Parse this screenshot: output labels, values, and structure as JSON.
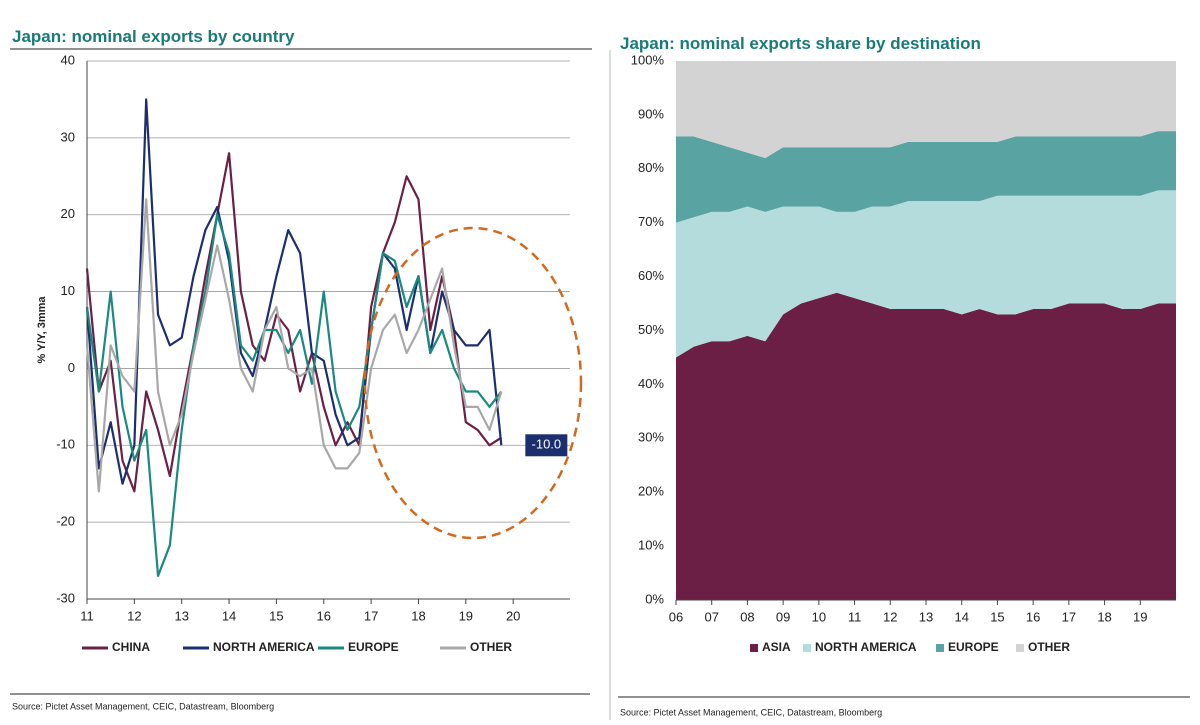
{
  "chart_data": [
    {
      "type": "line",
      "title": "Japan: nominal exports by country",
      "y_label": "% Y/Y, 3mma",
      "source": "Source: Pictet Asset Management, CEIC, Datastream, Bloomberg",
      "x": [
        11,
        11.25,
        11.5,
        11.75,
        12,
        12.25,
        12.5,
        12.75,
        13,
        13.25,
        13.5,
        13.75,
        14,
        14.25,
        14.5,
        14.75,
        15,
        15.25,
        15.5,
        15.75,
        16,
        16.25,
        16.5,
        16.75,
        17,
        17.25,
        17.5,
        17.75,
        18,
        18.25,
        18.5,
        18.75,
        19,
        19.25,
        19.5,
        19.75
      ],
      "series": [
        {
          "name": "CHINA",
          "color": "#6b1f45",
          "values": [
            13,
            -3,
            1,
            -12,
            -16,
            -3,
            -8,
            -14,
            -5,
            3,
            12,
            20,
            28,
            10,
            3,
            1,
            7,
            5,
            -3,
            2,
            -5,
            -10,
            -7,
            -10,
            8,
            15,
            19,
            25,
            22,
            5,
            12,
            5,
            -7,
            -8,
            -10,
            -9
          ]
        },
        {
          "name": "NORTH AMERICA",
          "color": "#1b2f6e",
          "values": [
            8,
            -13,
            -7,
            -15,
            -10,
            35,
            7,
            3,
            4,
            12,
            18,
            21,
            14,
            2,
            -1,
            5,
            12,
            18,
            15,
            2,
            1,
            -6,
            -10,
            -9,
            5,
            15,
            13,
            5,
            12,
            2,
            10,
            5,
            3,
            3,
            5,
            -10
          ]
        },
        {
          "name": "EUROPE",
          "color": "#1a8a80",
          "values": [
            8,
            -3,
            10,
            -5,
            -12,
            -8,
            -27,
            -23,
            -8,
            3,
            10,
            20,
            15,
            3,
            1,
            5,
            5,
            2,
            5,
            -2,
            10,
            -3,
            -8,
            -5,
            5,
            15,
            14,
            8,
            12,
            2,
            5,
            0,
            -3,
            -3,
            -5,
            -3
          ]
        },
        {
          "name": "OTHER",
          "color": "#a8a8a8",
          "values": [
            3,
            -16,
            3,
            -1,
            -3,
            22,
            -3,
            -10,
            -6,
            2,
            9,
            16,
            9,
            0,
            -3,
            5,
            8,
            0,
            -1,
            0,
            -10,
            -13,
            -13,
            -11,
            0,
            5,
            7,
            2,
            5,
            9,
            13,
            3,
            -5,
            -5,
            -8,
            -3
          ]
        }
      ],
      "annotation": {
        "value": -10,
        "label": "-10.0"
      },
      "xlim": [
        11,
        21.2
      ],
      "xticks": [
        11,
        12,
        13,
        14,
        15,
        16,
        17,
        18,
        19,
        20
      ],
      "ylim": [
        -30,
        40
      ],
      "yticks": [
        -30,
        -20,
        -10,
        0,
        10,
        20,
        30,
        40
      ],
      "grid": true
    },
    {
      "type": "area",
      "title": "Japan: nominal exports share by destination",
      "source": "Source: Pictet Asset Management, CEIC, Datastream, Bloomberg",
      "x": [
        6,
        6.5,
        7,
        7.5,
        8,
        8.5,
        9,
        9.5,
        10,
        10.5,
        11,
        11.5,
        12,
        12.5,
        13,
        13.5,
        14,
        14.5,
        15,
        15.5,
        16,
        16.5,
        17,
        17.5,
        18,
        18.5,
        19,
        19.5
      ],
      "series": [
        {
          "name": "ASIA",
          "color": "#6b1f45",
          "values": [
            45,
            47,
            48,
            48,
            49,
            48,
            53,
            55,
            56,
            57,
            56,
            55,
            54,
            54,
            54,
            54,
            53,
            54,
            53,
            53,
            54,
            54,
            55,
            55,
            55,
            54,
            54,
            55
          ]
        },
        {
          "name": "NORTH AMERICA",
          "color": "#b5dcdc",
          "values": [
            25,
            24,
            24,
            24,
            24,
            24,
            20,
            18,
            17,
            15,
            16,
            18,
            19,
            20,
            20,
            20,
            21,
            20,
            22,
            22,
            21,
            21,
            20,
            20,
            20,
            21,
            21,
            21
          ]
        },
        {
          "name": "EUROPE",
          "color": "#5aa3a3",
          "values": [
            16,
            15,
            13,
            12,
            10,
            10,
            11,
            11,
            11,
            12,
            12,
            11,
            11,
            11,
            11,
            11,
            11,
            11,
            10,
            11,
            11,
            11,
            11,
            11,
            11,
            11,
            11,
            11
          ]
        },
        {
          "name": "OTHER",
          "color": "#d3d3d3",
          "values": [
            14,
            14,
            15,
            16,
            17,
            18,
            16,
            16,
            16,
            16,
            16,
            16,
            16,
            15,
            15,
            15,
            15,
            15,
            15,
            14,
            14,
            14,
            14,
            14,
            14,
            14,
            14,
            13
          ]
        }
      ],
      "xlim": [
        6,
        20
      ],
      "xticks": [
        {
          "value": 6,
          "label": "06"
        },
        {
          "value": 7,
          "label": "07"
        },
        {
          "value": 8,
          "label": "08"
        },
        {
          "value": 9,
          "label": "09"
        },
        10,
        11,
        12,
        13,
        14,
        15,
        16,
        17,
        18,
        19
      ],
      "ylim": [
        0,
        100
      ],
      "yticks": [
        {
          "value": 0,
          "label": "0%"
        },
        {
          "value": 10,
          "label": "10%"
        },
        {
          "value": 20,
          "label": "20%"
        },
        {
          "value": 30,
          "label": "30%"
        },
        {
          "value": 40,
          "label": "40%"
        },
        {
          "value": 50,
          "label": "50%"
        },
        {
          "value": 60,
          "label": "60%"
        },
        {
          "value": 70,
          "label": "70%"
        },
        {
          "value": 80,
          "label": "80%"
        },
        {
          "value": 90,
          "label": "90%"
        },
        {
          "value": 100,
          "label": "100%"
        }
      ],
      "grid": false
    }
  ]
}
